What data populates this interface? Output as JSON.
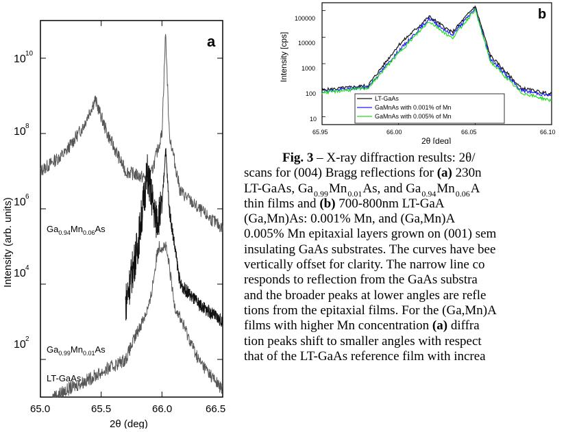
{
  "charts": {
    "a": {
      "panel_label": "a",
      "x_axis": {
        "label": "2θ (deg)",
        "ticks": [
          "65.0",
          "65.5",
          "66.0",
          "66.5"
        ]
      },
      "y_axis": {
        "label": "Intensity (arb. units)",
        "ticks": [
          "10",
          "10",
          "10",
          "10",
          "10"
        ],
        "exponents": [
          "2",
          "4",
          "6",
          "8",
          "10"
        ]
      },
      "labels": {
        "top_pre": "Ga",
        "top_sub1": "0.94",
        "top_mid": "Mn",
        "top_sub2": "0.06",
        "top_post": "As",
        "mid_pre": "Ga",
        "mid_sub1": "0.99",
        "mid_mid": "Mn",
        "mid_sub2": "0.01",
        "mid_post": "As",
        "bottom": "LT-GaAs"
      }
    },
    "b": {
      "panel_label": "b",
      "x_axis": {
        "label": "2θ [deg]",
        "ticks": [
          "65.95",
          "66.00",
          "66.05",
          "66.10"
        ]
      },
      "y_axis": {
        "label": "Intensity [cps]",
        "ticks": [
          "10",
          "100",
          "1000",
          "10000",
          "100000"
        ]
      },
      "legend": [
        "LT-GaAs",
        "GaMnAs with 0.001% of Mn",
        "GaMnAs with 0.005% of Mn"
      ]
    }
  },
  "chart_data": [
    {
      "type": "line",
      "title": "a",
      "xlabel": "2θ (deg)",
      "ylabel": "Intensity (arb. units)",
      "xlim": [
        65.0,
        66.5
      ],
      "yscale": "log",
      "ylim": [
        10.0,
        100000000000.0
      ],
      "series": [
        {
          "name": "Ga0.94Mn0.06As",
          "x": [
            65.0,
            65.2,
            65.35,
            65.45,
            65.55,
            65.7,
            65.9,
            66.0,
            66.03,
            66.06,
            66.15,
            66.3,
            66.5
          ],
          "y": [
            10000000.0,
            30000000.0,
            150000000.0,
            800000000.0,
            100000000.0,
            10000000.0,
            6000000.0,
            100000000.0,
            50000000000.0,
            100000000.0,
            3000000.0,
            1000000.0,
            300000.0
          ]
        },
        {
          "name": "Ga0.99Mn0.01As",
          "x": [
            65.7,
            65.8,
            65.88,
            65.95,
            66.0,
            66.03,
            66.06,
            66.15,
            66.3,
            66.5
          ],
          "y": [
            3000.0,
            100000.0,
            9000000.0,
            500000.0,
            1000000.0,
            40000000.0,
            1000000.0,
            10000.0,
            3000.0,
            1000.0
          ]
        },
        {
          "name": "LT-GaAs",
          "x": [
            65.1,
            65.4,
            65.7,
            65.9,
            65.97,
            66.0,
            66.03,
            66.06,
            66.1,
            66.3,
            66.5
          ],
          "y": [
            10,
            30,
            100.0,
            3000.0,
            100000.0,
            100000.0,
            100000.0,
            30000.0,
            3000.0,
            100.0,
            15
          ]
        }
      ]
    },
    {
      "type": "line",
      "title": "b",
      "xlabel": "2θ [deg]",
      "ylabel": "Intensity [cps]",
      "xlim": [
        65.95,
        66.1
      ],
      "yscale": "log",
      "ylim": [
        10,
        200000
      ],
      "series": [
        {
          "name": "LT-GaAs",
          "x": [
            65.95,
            65.98,
            66.0,
            66.02,
            66.035,
            66.05,
            66.06,
            66.08,
            66.1
          ],
          "y": [
            100,
            150,
            5000,
            60000,
            15000,
            150000,
            2000,
            120,
            70
          ]
        },
        {
          "name": "GaMnAs with 0.001% of Mn",
          "x": [
            65.95,
            65.98,
            66.0,
            66.02,
            66.035,
            66.05,
            66.06,
            66.08,
            66.1
          ],
          "y": [
            90,
            130,
            3000,
            50000,
            12000,
            120000,
            1500,
            100,
            60
          ]
        },
        {
          "name": "GaMnAs with 0.005% of Mn",
          "x": [
            65.95,
            65.98,
            66.0,
            66.02,
            66.035,
            66.05,
            66.06,
            66.08,
            66.1
          ],
          "y": [
            80,
            120,
            2500,
            40000,
            9000,
            110000,
            1200,
            80,
            40
          ]
        }
      ]
    }
  ],
  "caption": {
    "lines": [
      {
        "p": "",
        "b1": "Fig. 3",
        "t1": " – X-ray diffraction results: 2θ/"
      },
      {
        "t1": "scans for (004) Bragg reflections for ",
        "b1": "(a)",
        "t2": " 230n"
      },
      {
        "t1": "LT-GaAs, Ga",
        "s1": "0.99",
        "t2": "Mn",
        "s2": "0.01",
        "t3": "As, and Ga",
        "s3": "0.94",
        "t4": "Mn",
        "s4": "0.06",
        "t5": "A"
      },
      {
        "t1": "thin films and ",
        "b1": "(b)",
        "t2": " 700-800nm LT-GaA"
      },
      {
        "t1": "(Ga,Mn)As: 0.001% Mn, and (Ga,Mn)A"
      },
      {
        "t1": "0.005% Mn epitaxial layers grown on (001) sem"
      },
      {
        "t1": "insulating GaAs substrates. The curves have bee"
      },
      {
        "t1": "vertically offset for clarity. The narrow line co"
      },
      {
        "t1": "responds to reflection from the GaAs substra"
      },
      {
        "t1": "and the broader peaks at lower angles are refle"
      },
      {
        "t1": "tions from the epitaxial films. For the (Ga,Mn)A"
      },
      {
        "t1": "films with higher Mn concentration ",
        "b1": "(a)",
        "t2": " diffra"
      },
      {
        "t1": "tion peaks shift to smaller angles with respect"
      },
      {
        "t1": "that of the LT-GaAs reference film with increa"
      }
    ]
  },
  "colors": {
    "series_black": "#111111",
    "series_blue": "#1a1aff",
    "series_green": "#22dd22",
    "trace_gray": "#555555"
  }
}
